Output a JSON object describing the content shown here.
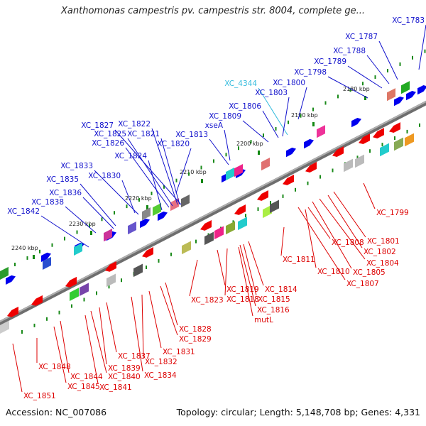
{
  "title": "Xanthomonas campestris pv. campestris str. 8004, complete ge...",
  "footer": {
    "accession": "Accession: NC_007086",
    "summary": "Topology: circular; Length: 5,148,708 bp; Genes: 4,331"
  },
  "colors": {
    "forward_label": "#1010cc",
    "reverse_label": "#dd0000",
    "rna_label": "#33bbdd",
    "backbone": "#8a8a8a",
    "forward_feature": "#0000ee",
    "reverse_feature": "#ee0000"
  },
  "ticks": [
    "2180 kbp",
    "2190 kbp",
    "2200 kbp",
    "2210 kbp",
    "2220 kbp",
    "2230 kbp",
    "2240 kbp"
  ],
  "forward_labels": [
    "XC_1783",
    "XC_1787",
    "XC_1788",
    "XC_1789",
    "XC_1798",
    "XC_4344",
    "XC_1800",
    "XC_1803",
    "XC_1806",
    "XC_1809",
    "xseA",
    "XC_1813",
    "XC_1827",
    "XC_1822",
    "XC_1825",
    "XC_1821",
    "XC_1826",
    "XC_1820",
    "XC_1824",
    "XC_1833",
    "XC_1830",
    "XC_1835",
    "XC_1836",
    "XC_1838",
    "XC_1842"
  ],
  "reverse_labels": [
    "XC_1799",
    "XC_1801",
    "XC_1802",
    "XC_1808",
    "XC_1804",
    "XC_1805",
    "XC_1811",
    "XC_1810",
    "XC_1807",
    "XC_1819",
    "XC_1814",
    "XC_1823",
    "XC_1818",
    "XC_1815",
    "XC_1816",
    "mutL",
    "XC_1828",
    "XC_1829",
    "XC_1831",
    "XC_1837",
    "XC_1832",
    "XC_1848",
    "XC_1839",
    "XC_1834",
    "XC_1844",
    "XC_1840",
    "XC_1845",
    "XC_1841",
    "XC_1851"
  ]
}
